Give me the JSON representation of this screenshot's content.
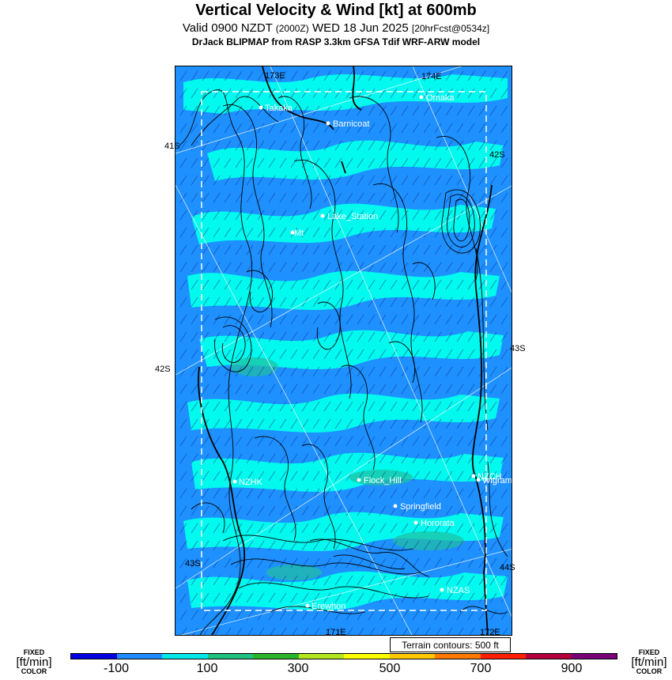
{
  "header": {
    "title": "Vertical Velocity & Wind [kt] at 600mb",
    "subtitle_main": "Valid 0900 NZDT",
    "subtitle_utc": "(2000Z)",
    "subtitle_date": "WED 18 Jun 2025",
    "subtitle_fcst": "[20hrFcst@0534z]",
    "model_line": "DrJack BLIPMAP from RASP 3.3km GFSA Tdif WRF-ARW model"
  },
  "map": {
    "graticule_labels": {
      "top_left": "173E",
      "top_right": "174E",
      "bottom_left": "171E",
      "bottom_right": "172E",
      "lat_41s": "41S",
      "lat_42s_right": "42S",
      "lat_42s_left": "42S",
      "lat_43s_right": "43S",
      "lat_43s_left": "43S",
      "lat_44s": "44S"
    },
    "places": [
      {
        "name": "Takaka"
      },
      {
        "name": "Omaka"
      },
      {
        "name": "Barnicoat"
      },
      {
        "name": "Lake_Station"
      },
      {
        "name": "Mt"
      },
      {
        "name": "NZHK"
      },
      {
        "name": "Flock_Hill"
      },
      {
        "name": "NZCH"
      },
      {
        "name": "Wigram"
      },
      {
        "name": "Springfield"
      },
      {
        "name": "Hororata"
      },
      {
        "name": "NZAS"
      },
      {
        "name": "Erewhon"
      }
    ],
    "colors": {
      "background": "#1e90ff",
      "updraft": "#00ffee",
      "weak_updraft": "#20c0a0",
      "contour": "#000000"
    }
  },
  "terrain_note": "Terrain contours: 500 ft",
  "legend": {
    "left_fixed": "FIXED",
    "left_units": "[ft/min]",
    "left_color": "COLOR",
    "right_fixed": "FIXED",
    "right_units": "[ft/min]",
    "right_color": "COLOR",
    "ticks": [
      "-100",
      "100",
      "300",
      "500",
      "700",
      "900"
    ],
    "colors": [
      "#0000e0",
      "#1e8cff",
      "#00e8e8",
      "#20c080",
      "#2cb42c",
      "#b4e61e",
      "#ffff00",
      "#ffc800",
      "#ff7800",
      "#ff1e00",
      "#b4003c",
      "#780078"
    ]
  }
}
